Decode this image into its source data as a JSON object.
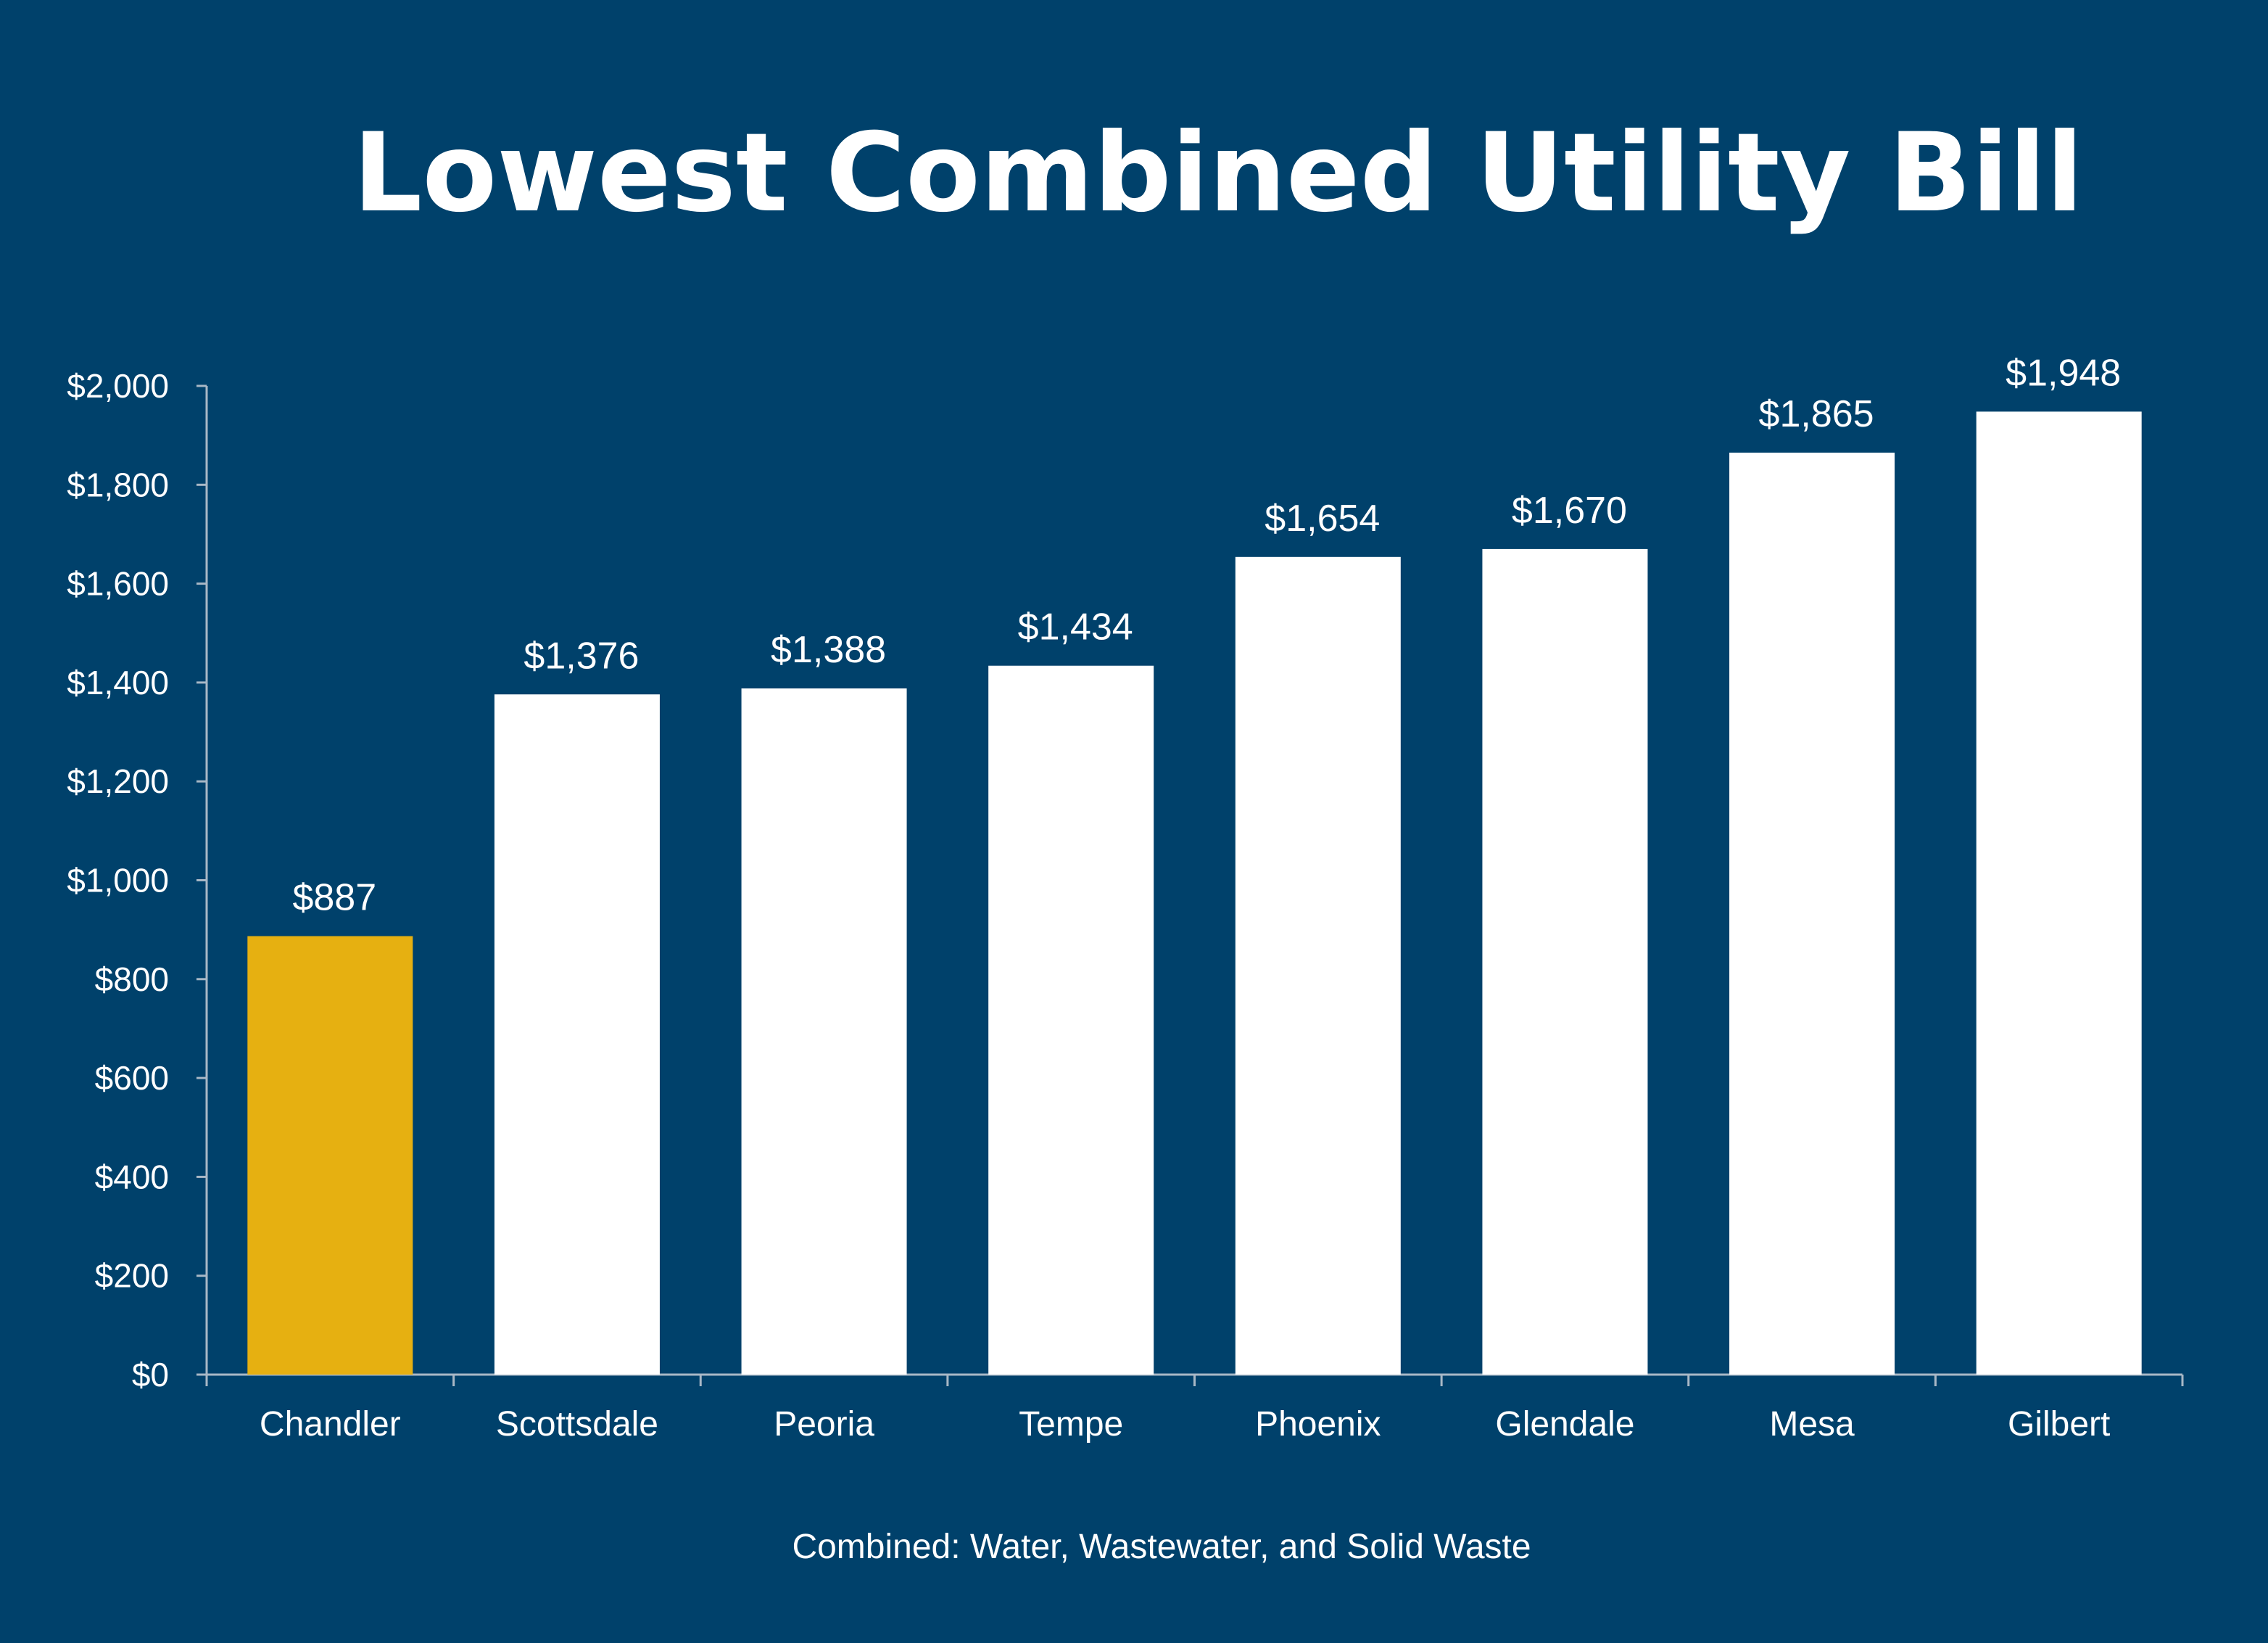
{
  "chart_data": {
    "type": "bar",
    "title": "Lowest Combined Utility Bill",
    "xlabel": "",
    "ylabel": "",
    "note": "Combined: Water, Wastewater, and Solid Waste",
    "categories": [
      "Chandler",
      "Scottsdale",
      "Peoria",
      "Tempe",
      "Phoenix",
      "Glendale",
      "Mesa",
      "Gilbert"
    ],
    "values": [
      887,
      1376,
      1388,
      1434,
      1654,
      1670,
      1865,
      1948
    ],
    "value_labels": [
      "$887",
      "$1,376",
      "$1,388",
      "$1,434",
      "$1,654",
      "$1,670",
      "$1,865",
      "$1,948"
    ],
    "ylim": [
      0,
      2000
    ],
    "yticks": [
      0,
      200,
      400,
      600,
      800,
      1000,
      1200,
      1400,
      1600,
      1800,
      2000
    ],
    "ytick_labels": [
      "$0",
      "$200",
      "$400",
      "$600",
      "$800",
      "$1,000",
      "$1,200",
      "$1,400",
      "$1,600",
      "$1,800",
      "$2,000"
    ],
    "grid": false,
    "legend": "none",
    "highlight_index": 0,
    "colors": {
      "background": "#00416b",
      "highlight_bar": "#e6b011",
      "bar": "#ffffff",
      "text": "#ffffff",
      "axis": "#a9b8c6"
    }
  }
}
